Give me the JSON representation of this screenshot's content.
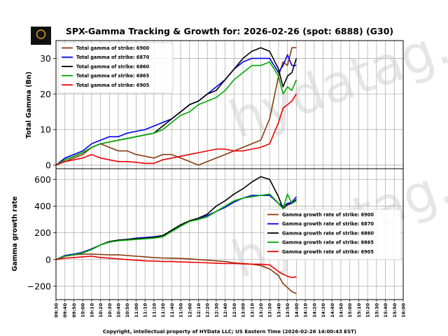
{
  "header": {
    "title": "SPX-Gamma Tracking & Growth for: 2026-02-26 (spot: 6888) (G30)",
    "title_color": "#0000cc",
    "logo_text": "HYData",
    "watermark": "hydatag.com"
  },
  "footer": {
    "copyright": "Copyright, intellectual property of HYData LLC; US Eastern Time (2026-02-26 14:00:43 EST)"
  },
  "chart_data": [
    {
      "type": "line",
      "title": "SPX-Gamma Tracking & Growth for: 2026-02-26 (spot: 6888) (G30)",
      "xlabel": "",
      "ylabel": "Total Gamma (Bn)",
      "ylim": [
        -1,
        35
      ],
      "yticks": [
        0,
        10,
        20,
        30
      ],
      "grid": true,
      "legend": "top-left",
      "x": [
        "09:30",
        "09:40",
        "09:50",
        "10:00",
        "10:10",
        "10:20",
        "10:30",
        "10:40",
        "10:50",
        "11:00",
        "11:10",
        "11:20",
        "11:30",
        "11:40",
        "11:50",
        "12:00",
        "12:10",
        "12:20",
        "12:30",
        "12:40",
        "12:50",
        "13:00",
        "13:10",
        "13:20",
        "13:30",
        "13:40",
        "13:45",
        "13:50",
        "13:55",
        "14:00"
      ],
      "series": [
        {
          "name": "Total gamma of strike: 6900",
          "color": "#8b3a0f",
          "values": [
            0,
            1,
            2,
            3,
            5,
            6,
            5,
            4,
            4,
            3,
            2.5,
            2,
            3,
            3,
            2,
            1,
            0,
            1,
            2,
            3,
            4,
            5,
            6,
            7,
            13,
            25,
            29,
            28,
            33,
            33
          ]
        },
        {
          "name": "Total gamma of strike: 6870",
          "color": "#0000ee",
          "values": [
            0,
            2,
            3,
            4,
            6,
            7,
            8,
            8,
            9,
            9.5,
            10,
            11,
            12,
            13,
            15,
            17,
            18,
            20,
            22,
            24,
            27,
            29,
            30,
            30,
            30,
            26,
            28,
            31,
            28,
            28
          ]
        },
        {
          "name": "Total gamma of strike: 6860",
          "color": "#000000",
          "values": [
            0,
            1.5,
            2.5,
            3.5,
            5,
            6,
            6.5,
            7,
            7.5,
            8,
            8.5,
            9,
            11,
            13,
            15,
            17,
            18,
            20,
            21,
            24,
            27,
            30,
            32,
            33,
            32,
            27,
            22,
            25,
            26,
            30
          ]
        },
        {
          "name": "Total gamma of strike: 6865",
          "color": "#00aa00",
          "values": [
            0,
            1.5,
            2.5,
            3.5,
            5,
            6,
            6.5,
            7,
            7.5,
            8,
            8.5,
            9,
            10,
            12,
            14,
            15,
            17,
            18,
            19,
            21,
            24,
            26,
            28,
            28,
            29,
            25,
            20,
            22,
            21,
            24
          ]
        },
        {
          "name": "Total gamma of strike: 6905",
          "color": "#ee0000",
          "values": [
            0,
            1,
            1.5,
            2,
            3,
            2,
            1.5,
            1,
            1,
            0.8,
            0.5,
            0.5,
            1.5,
            2,
            2.5,
            3,
            3.5,
            4,
            4.5,
            4.5,
            4,
            4,
            4.5,
            5,
            6,
            12,
            16,
            17,
            18,
            20
          ]
        }
      ]
    },
    {
      "type": "line",
      "title": "",
      "xlabel": "",
      "ylabel": "Gamma growth rate",
      "ylim": [
        -300,
        680
      ],
      "yticks": [
        -200,
        0,
        200,
        400,
        600
      ],
      "grid": true,
      "legend": "right",
      "x_tick_labels": [
        "09:30",
        "09:40",
        "09:50",
        "10:00",
        "10:10",
        "10:20",
        "10:30",
        "10:40",
        "10:50",
        "11:00",
        "11:10",
        "11:20",
        "11:30",
        "11:40",
        "11:50",
        "12:00",
        "12:10",
        "12:20",
        "12:30",
        "12:40",
        "12:50",
        "13:00",
        "13:10",
        "13:20",
        "13:30",
        "13:40",
        "13:50",
        "14:00",
        "14:10",
        "14:20",
        "14:30",
        "14:40",
        "14:50",
        "15:00",
        "15:10",
        "15:20",
        "15:30",
        "15:40",
        "15:50",
        "16:00"
      ],
      "x": [
        "09:30",
        "09:40",
        "09:50",
        "10:00",
        "10:10",
        "10:20",
        "10:30",
        "10:40",
        "10:50",
        "11:00",
        "11:10",
        "11:20",
        "11:30",
        "11:40",
        "11:50",
        "12:00",
        "12:10",
        "12:20",
        "12:30",
        "12:40",
        "12:50",
        "13:00",
        "13:10",
        "13:20",
        "13:30",
        "13:40",
        "13:45",
        "13:50",
        "13:55",
        "14:00"
      ],
      "series": [
        {
          "name": "Gamma growth rate of strike: 6900",
          "color": "#8b3a0f",
          "values": [
            0,
            25,
            35,
            40,
            40,
            38,
            35,
            35,
            30,
            25,
            20,
            15,
            12,
            10,
            8,
            5,
            0,
            -5,
            -10,
            -15,
            -25,
            -30,
            -35,
            -45,
            -70,
            -120,
            -180,
            -210,
            -240,
            -255
          ]
        },
        {
          "name": "Gamma growth rate of strike: 6870",
          "color": "#0000ee",
          "values": [
            0,
            30,
            40,
            55,
            80,
            110,
            130,
            145,
            150,
            160,
            165,
            170,
            180,
            210,
            250,
            290,
            300,
            330,
            360,
            390,
            430,
            460,
            480,
            480,
            480,
            420,
            400,
            420,
            430,
            470
          ]
        },
        {
          "name": "Gamma growth rate of strike: 6860",
          "color": "#000000",
          "values": [
            0,
            25,
            35,
            50,
            75,
            110,
            135,
            145,
            150,
            155,
            160,
            165,
            180,
            220,
            260,
            290,
            310,
            340,
            400,
            440,
            490,
            530,
            580,
            620,
            600,
            470,
            380,
            410,
            420,
            450
          ]
        },
        {
          "name": "Gamma growth rate of strike: 6865",
          "color": "#00aa00",
          "values": [
            0,
            25,
            35,
            50,
            75,
            110,
            130,
            140,
            145,
            150,
            155,
            160,
            170,
            210,
            250,
            285,
            300,
            320,
            360,
            400,
            440,
            460,
            470,
            480,
            490,
            420,
            380,
            490,
            420,
            440
          ]
        },
        {
          "name": "Gamma growth rate of strike: 6905",
          "color": "#ee0000",
          "values": [
            0,
            10,
            15,
            20,
            25,
            15,
            10,
            5,
            0,
            -5,
            -10,
            -12,
            -15,
            -15,
            -18,
            -20,
            -22,
            -25,
            -28,
            -30,
            -30,
            -32,
            -35,
            -35,
            -40,
            -90,
            -110,
            -125,
            -135,
            -130
          ]
        }
      ]
    }
  ]
}
